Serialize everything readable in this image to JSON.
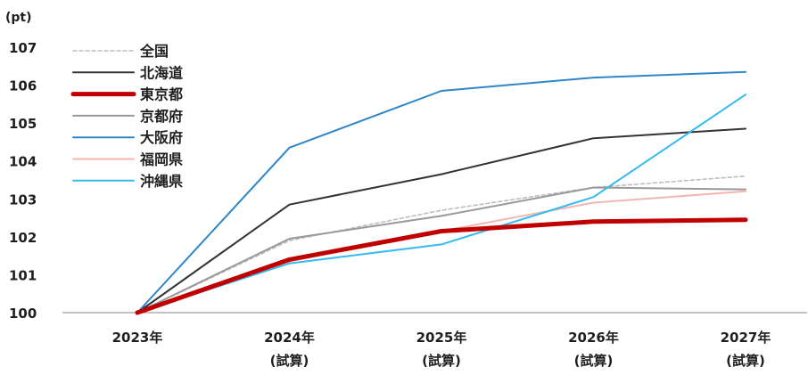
{
  "chart_data": {
    "type": "line",
    "unit_label": "(pt)",
    "categories": [
      {
        "line1": "2023年",
        "line2": ""
      },
      {
        "line1": "2024年",
        "line2": "(試算)"
      },
      {
        "line1": "2025年",
        "line2": "(試算)"
      },
      {
        "line1": "2026年",
        "line2": "(試算)"
      },
      {
        "line1": "2027年",
        "line2": "(試算)"
      }
    ],
    "ylim": [
      100,
      107
    ],
    "yticks": [
      100,
      101,
      102,
      103,
      104,
      105,
      106,
      107
    ],
    "grid": false,
    "legend_position": "top-left",
    "series": [
      {
        "name": "全国",
        "color": "#bdbdbd",
        "dashed": true,
        "width": "thin",
        "values": [
          100,
          101.9,
          102.7,
          103.3,
          103.6
        ]
      },
      {
        "name": "北海道",
        "color": "#333333",
        "dashed": false,
        "width": "normal",
        "values": [
          100,
          102.85,
          103.65,
          104.6,
          104.85
        ]
      },
      {
        "name": "東京都",
        "color": "#c00000",
        "dashed": false,
        "width": "thick",
        "values": [
          100,
          101.4,
          102.15,
          102.4,
          102.45
        ]
      },
      {
        "name": "京都府",
        "color": "#999999",
        "dashed": false,
        "width": "normal",
        "values": [
          100,
          101.95,
          102.55,
          103.3,
          103.25
        ]
      },
      {
        "name": "大阪府",
        "color": "#2e86c9",
        "dashed": false,
        "width": "normal",
        "values": [
          100,
          104.35,
          105.85,
          106.2,
          106.35
        ]
      },
      {
        "name": "福岡県",
        "color": "#f4b6b2",
        "dashed": false,
        "width": "normal",
        "values": [
          100,
          101.35,
          102.15,
          102.9,
          103.2
        ]
      },
      {
        "name": "沖縄県",
        "color": "#33bbee",
        "dashed": false,
        "width": "normal",
        "values": [
          100,
          101.3,
          101.8,
          103.05,
          105.75
        ]
      }
    ]
  }
}
